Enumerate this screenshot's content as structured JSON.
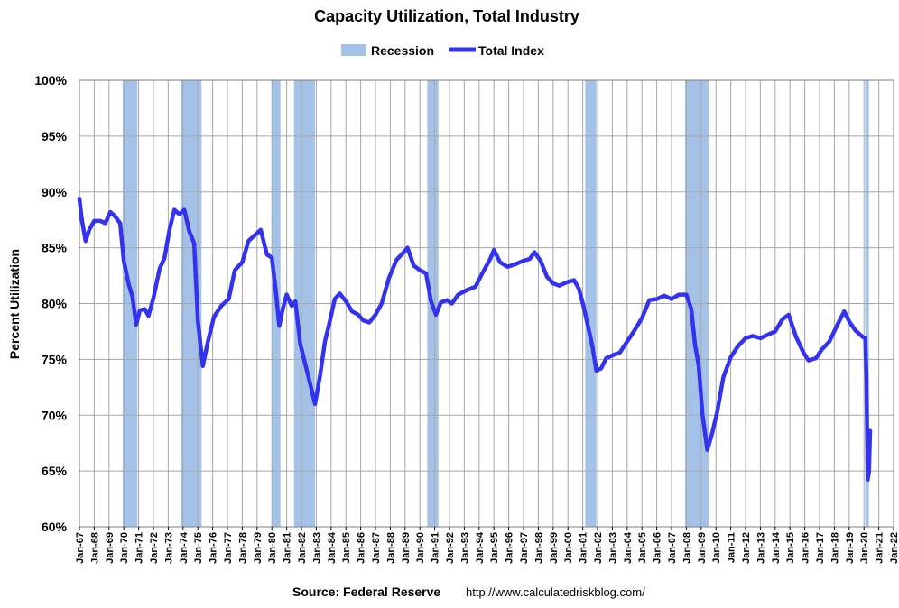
{
  "chart_data": {
    "type": "line",
    "title": "Capacity Utilization, Total Industry",
    "ylabel": "Percent Utilization",
    "xlabel": "",
    "source_label": "Source: Federal Reserve",
    "source_url": "http://www.calculatedriskblog.com/",
    "ylim": [
      60,
      100
    ],
    "xlim": [
      "1967-01",
      "2022-01"
    ],
    "y_ticks": [
      "60%",
      "65%",
      "70%",
      "75%",
      "80%",
      "85%",
      "90%",
      "95%",
      "100%"
    ],
    "x_ticks": [
      "Jan-67",
      "Jan-68",
      "Jan-69",
      "Jan-70",
      "Jan-71",
      "Jan-72",
      "Jan-73",
      "Jan-74",
      "Jan-75",
      "Jan-76",
      "Jan-77",
      "Jan-78",
      "Jan-79",
      "Jan-80",
      "Jan-81",
      "Jan-82",
      "Jan-83",
      "Jan-84",
      "Jan-85",
      "Jan-86",
      "Jan-87",
      "Jan-88",
      "Jan-89",
      "Jan-90",
      "Jan-91",
      "Jan-92",
      "Jan-93",
      "Jan-94",
      "Jan-95",
      "Jan-96",
      "Jan-97",
      "Jan-98",
      "Jan-99",
      "Jan-00",
      "Jan-01",
      "Jan-02",
      "Jan-03",
      "Jan-04",
      "Jan-05",
      "Jan-06",
      "Jan-07",
      "Jan-08",
      "Jan-09",
      "Jan-10",
      "Jan-11",
      "Jan-12",
      "Jan-13",
      "Jan-14",
      "Jan-15",
      "Jan-16",
      "Jan-17",
      "Jan-18",
      "Jan-19",
      "Jan-20",
      "Jan-21",
      "Jan-22"
    ],
    "grid": true,
    "legend_placement": "top-center",
    "colors": {
      "recession": "#a4c2e8",
      "series": "#3333ee",
      "grid": "#a6a6a6",
      "plot_border": "#7f7f7f"
    },
    "legend": [
      {
        "label": "Recession",
        "kind": "band"
      },
      {
        "label": "Total Index",
        "kind": "line"
      }
    ],
    "recessions": [
      {
        "start": "1969-12",
        "end": "1970-11"
      },
      {
        "start": "1973-11",
        "end": "1975-03"
      },
      {
        "start": "1980-01",
        "end": "1980-07"
      },
      {
        "start": "1981-07",
        "end": "1982-11"
      },
      {
        "start": "1990-07",
        "end": "1991-03"
      },
      {
        "start": "2001-03",
        "end": "2001-11"
      },
      {
        "start": "2007-12",
        "end": "2009-06"
      },
      {
        "start": "2020-02",
        "end": "2020-04"
      }
    ],
    "series": [
      {
        "name": "Total Index",
        "points": [
          [
            "1967-01",
            89.4
          ],
          [
            "1967-03",
            87.5
          ],
          [
            "1967-06",
            85.6
          ],
          [
            "1967-09",
            86.6
          ],
          [
            "1968-01",
            87.4
          ],
          [
            "1968-06",
            87.4
          ],
          [
            "1968-10",
            87.2
          ],
          [
            "1969-02",
            88.2
          ],
          [
            "1969-06",
            87.8
          ],
          [
            "1969-10",
            87.2
          ],
          [
            "1970-01",
            83.8
          ],
          [
            "1970-05",
            81.7
          ],
          [
            "1970-08",
            80.6
          ],
          [
            "1970-11",
            78.1
          ],
          [
            "1971-02",
            79.4
          ],
          [
            "1971-06",
            79.5
          ],
          [
            "1971-09",
            78.9
          ],
          [
            "1972-01",
            80.5
          ],
          [
            "1972-06",
            83.1
          ],
          [
            "1972-10",
            84.1
          ],
          [
            "1973-02",
            86.6
          ],
          [
            "1973-06",
            88.4
          ],
          [
            "1973-10",
            88.0
          ],
          [
            "1974-02",
            88.4
          ],
          [
            "1974-06",
            86.5
          ],
          [
            "1974-10",
            85.4
          ],
          [
            "1975-01",
            78.5
          ],
          [
            "1975-05",
            74.4
          ],
          [
            "1975-09",
            76.5
          ],
          [
            "1976-02",
            78.8
          ],
          [
            "1976-08",
            79.8
          ],
          [
            "1977-02",
            80.4
          ],
          [
            "1977-07",
            83.0
          ],
          [
            "1978-01",
            83.7
          ],
          [
            "1978-06",
            85.6
          ],
          [
            "1978-12",
            86.2
          ],
          [
            "1979-04",
            86.6
          ],
          [
            "1979-09",
            84.4
          ],
          [
            "1980-01",
            84.1
          ],
          [
            "1980-04",
            81.3
          ],
          [
            "1980-07",
            78.0
          ],
          [
            "1980-10",
            79.6
          ],
          [
            "1981-01",
            80.8
          ],
          [
            "1981-05",
            79.8
          ],
          [
            "1981-08",
            80.2
          ],
          [
            "1981-12",
            76.4
          ],
          [
            "1982-04",
            74.6
          ],
          [
            "1982-08",
            72.8
          ],
          [
            "1982-12",
            71.0
          ],
          [
            "1983-04",
            73.5
          ],
          [
            "1983-08",
            76.6
          ],
          [
            "1983-12",
            78.4
          ],
          [
            "1984-04",
            80.4
          ],
          [
            "1984-08",
            80.9
          ],
          [
            "1985-01",
            80.2
          ],
          [
            "1985-06",
            79.3
          ],
          [
            "1985-11",
            79.0
          ],
          [
            "1986-03",
            78.5
          ],
          [
            "1986-08",
            78.3
          ],
          [
            "1987-01",
            79.0
          ],
          [
            "1987-06",
            80.0
          ],
          [
            "1987-12",
            82.3
          ],
          [
            "1988-06",
            83.9
          ],
          [
            "1988-12",
            84.6
          ],
          [
            "1989-03",
            85.0
          ],
          [
            "1989-08",
            83.4
          ],
          [
            "1990-01",
            83.0
          ],
          [
            "1990-06",
            82.7
          ],
          [
            "1990-10",
            80.2
          ],
          [
            "1991-02",
            79.0
          ],
          [
            "1991-06",
            80.1
          ],
          [
            "1991-11",
            80.3
          ],
          [
            "1992-03",
            80.0
          ],
          [
            "1992-08",
            80.8
          ],
          [
            "1993-03",
            81.2
          ],
          [
            "1993-10",
            81.5
          ],
          [
            "1994-04",
            82.8
          ],
          [
            "1994-10",
            84.0
          ],
          [
            "1995-01",
            84.8
          ],
          [
            "1995-06",
            83.7
          ],
          [
            "1995-12",
            83.3
          ],
          [
            "1996-06",
            83.5
          ],
          [
            "1996-12",
            83.8
          ],
          [
            "1997-06",
            84.0
          ],
          [
            "1997-10",
            84.6
          ],
          [
            "1998-03",
            83.8
          ],
          [
            "1998-08",
            82.4
          ],
          [
            "1999-01",
            81.8
          ],
          [
            "1999-06",
            81.6
          ],
          [
            "1999-12",
            81.9
          ],
          [
            "2000-06",
            82.1
          ],
          [
            "2000-10",
            81.3
          ],
          [
            "2001-02",
            79.6
          ],
          [
            "2001-06",
            77.6
          ],
          [
            "2001-09",
            76.1
          ],
          [
            "2001-12",
            74.0
          ],
          [
            "2002-04",
            74.2
          ],
          [
            "2002-08",
            75.1
          ],
          [
            "2003-02",
            75.4
          ],
          [
            "2003-07",
            75.6
          ],
          [
            "2004-01",
            76.6
          ],
          [
            "2004-07",
            77.6
          ],
          [
            "2005-01",
            78.7
          ],
          [
            "2005-07",
            80.3
          ],
          [
            "2006-01",
            80.4
          ],
          [
            "2006-07",
            80.7
          ],
          [
            "2007-01",
            80.4
          ],
          [
            "2007-07",
            80.8
          ],
          [
            "2008-01",
            80.8
          ],
          [
            "2008-05",
            79.5
          ],
          [
            "2008-08",
            76.3
          ],
          [
            "2008-11",
            74.4
          ],
          [
            "2009-02",
            70.1
          ],
          [
            "2009-06",
            66.9
          ],
          [
            "2009-10",
            68.4
          ],
          [
            "2010-02",
            70.3
          ],
          [
            "2010-07",
            73.4
          ],
          [
            "2011-01",
            75.2
          ],
          [
            "2011-07",
            76.2
          ],
          [
            "2012-01",
            76.9
          ],
          [
            "2012-07",
            77.1
          ],
          [
            "2013-01",
            76.9
          ],
          [
            "2013-07",
            77.2
          ],
          [
            "2014-01",
            77.5
          ],
          [
            "2014-07",
            78.6
          ],
          [
            "2014-12",
            79.0
          ],
          [
            "2015-06",
            77.0
          ],
          [
            "2015-12",
            75.6
          ],
          [
            "2016-04",
            74.9
          ],
          [
            "2016-10",
            75.1
          ],
          [
            "2017-03",
            75.9
          ],
          [
            "2017-09",
            76.6
          ],
          [
            "2018-03",
            78.0
          ],
          [
            "2018-09",
            79.3
          ],
          [
            "2019-01",
            78.4
          ],
          [
            "2019-06",
            77.6
          ],
          [
            "2019-12",
            77.0
          ],
          [
            "2020-02",
            76.9
          ],
          [
            "2020-03",
            73.6
          ],
          [
            "2020-04",
            64.2
          ],
          [
            "2020-05",
            64.9
          ],
          [
            "2020-06",
            68.6
          ]
        ]
      }
    ]
  }
}
